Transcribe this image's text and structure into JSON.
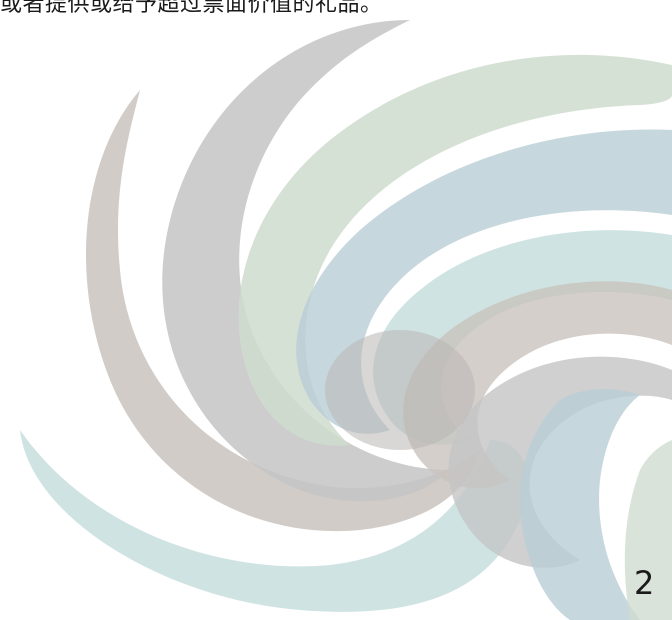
{
  "document": {
    "top_text": "或者提供或给予超过票面价值的礼品。",
    "page_number": "2"
  },
  "decoration": {
    "name": "swirl-graphic",
    "colors": {
      "taupe": "#c9c3bd",
      "gray": "#c4c4c6",
      "sage": "#cfdccf",
      "steel_blue": "#b9cdd6",
      "pale_teal": "#c6dedd"
    }
  }
}
